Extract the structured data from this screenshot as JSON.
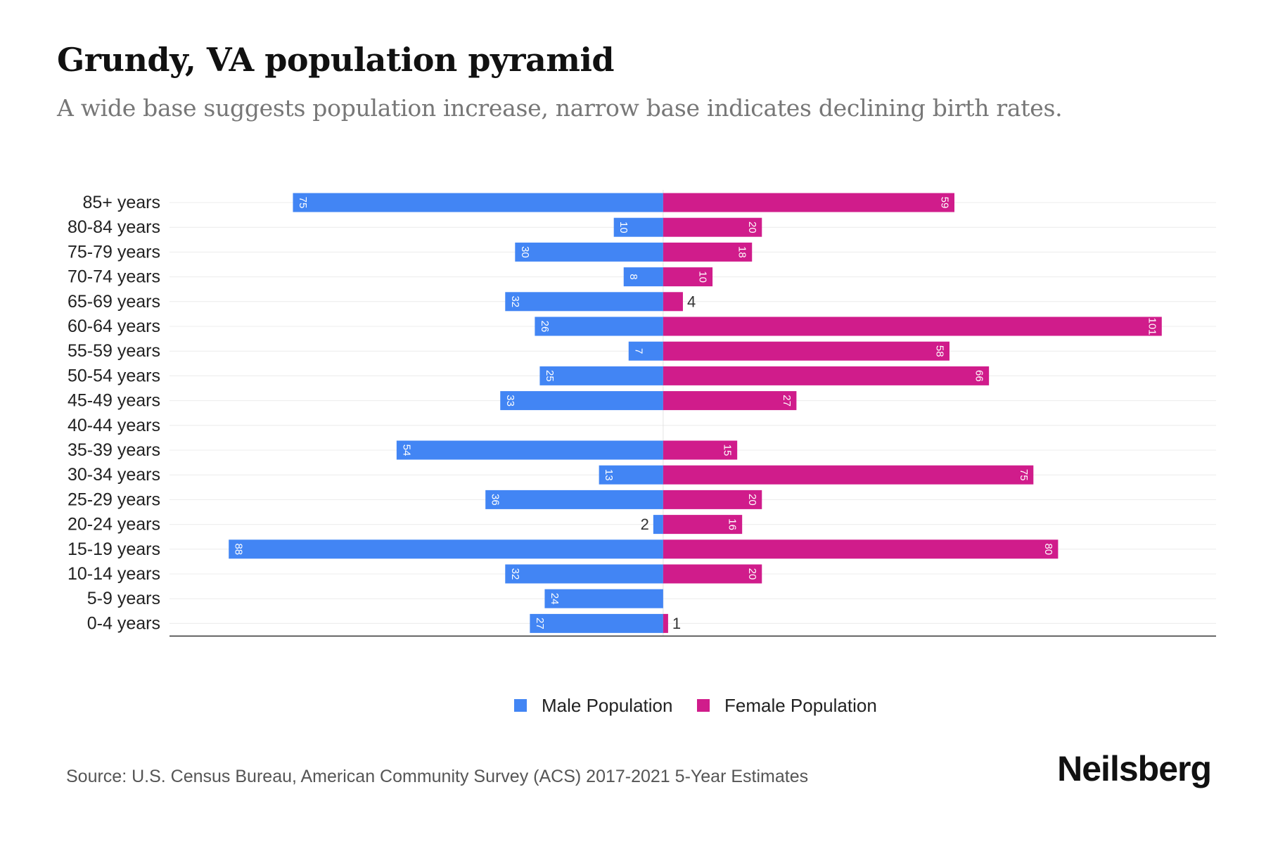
{
  "header": {
    "title": "Grundy, VA population pyramid",
    "subtitle": "A wide base suggests population increase, narrow base indicates declining birth rates."
  },
  "footer": {
    "source": "Source: U.S. Census Bureau, American Community Survey (ACS) 2017-2021 5-Year Estimates",
    "brand": "Neilsberg"
  },
  "chart_data": {
    "type": "bar",
    "orientation": "horizontal-pyramid",
    "title": "Grundy, VA population pyramid",
    "subtitle": "A wide base suggests population increase, narrow base indicates declining birth rates.",
    "categories": [
      "85+ years",
      "80-84 years",
      "75-79 years",
      "70-74 years",
      "65-69 years",
      "60-64 years",
      "55-59 years",
      "50-54 years",
      "45-49 years",
      "40-44 years",
      "35-39 years",
      "30-34 years",
      "25-29 years",
      "20-24 years",
      "15-19 years",
      "10-14 years",
      "5-9 years",
      "0-4 years"
    ],
    "series": [
      {
        "name": "Male Population",
        "color": "#4285F4",
        "values": [
          75,
          10,
          30,
          8,
          32,
          26,
          7,
          25,
          33,
          0,
          54,
          13,
          36,
          2,
          88,
          32,
          24,
          27
        ]
      },
      {
        "name": "Female Population",
        "color": "#D01C8B",
        "values": [
          59,
          20,
          18,
          10,
          4,
          101,
          58,
          66,
          27,
          0,
          15,
          75,
          20,
          16,
          80,
          20,
          0,
          1
        ]
      }
    ],
    "xlim": [
      -100,
      112
    ],
    "legend_position": "bottom-center",
    "grid": true
  }
}
